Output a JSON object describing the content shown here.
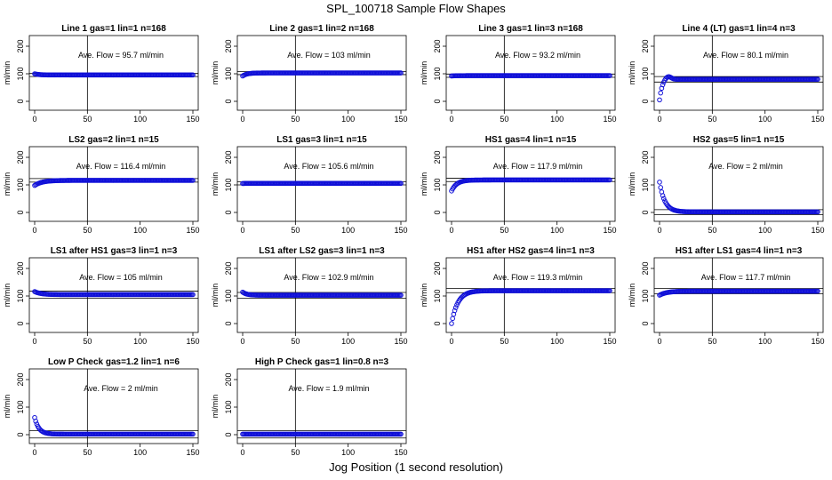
{
  "figure": {
    "title": "SPL_100718  Sample Flow Shapes",
    "xlabel": "Jog Position (1 second resolution)"
  },
  "chart_data": [
    {
      "type": "scatter",
      "title": "Line 1 gas=1 lin=1 n=168",
      "ylabel": "ml/min",
      "annotation": "Ave. Flow =  95.7  ml/min",
      "xlim": [
        0,
        150
      ],
      "ylim": [
        0,
        200
      ],
      "xticks": [
        0,
        50,
        100,
        150
      ],
      "yticks": [
        0,
        100,
        200
      ],
      "vline": 50,
      "hlines": [
        90,
        101
      ],
      "curve": {
        "start": 100,
        "end": 95.7,
        "tau": 4
      }
    },
    {
      "type": "scatter",
      "title": "Line 2 gas=1 lin=2 n=168",
      "ylabel": "ml/min",
      "annotation": "Ave. Flow =  103  ml/min",
      "xlim": [
        0,
        150
      ],
      "ylim": [
        0,
        200
      ],
      "xticks": [
        0,
        50,
        100,
        150
      ],
      "yticks": [
        0,
        100,
        200
      ],
      "vline": 50,
      "hlines": [
        97,
        108
      ],
      "curve": {
        "start": 92,
        "end": 103,
        "tau": 4
      }
    },
    {
      "type": "scatter",
      "title": "Line 3 gas=1 lin=3 n=168",
      "ylabel": "ml/min",
      "annotation": "Ave. Flow =  93.2  ml/min",
      "xlim": [
        0,
        150
      ],
      "ylim": [
        0,
        200
      ],
      "xticks": [
        0,
        50,
        100,
        150
      ],
      "yticks": [
        0,
        100,
        200
      ],
      "vline": 50,
      "hlines": [
        87,
        99
      ],
      "curve": {
        "start": 92,
        "end": 93.2,
        "tau": 3
      }
    },
    {
      "type": "scatter",
      "title": "Line 4 (LT) gas=1 lin=4 n=3",
      "ylabel": "ml/min",
      "annotation": "Ave. Flow =  80.1  ml/min",
      "xlim": [
        0,
        150
      ],
      "ylim": [
        0,
        200
      ],
      "xticks": [
        0,
        50,
        100,
        150
      ],
      "yticks": [
        0,
        100,
        200
      ],
      "vline": 50,
      "hlines": [
        70,
        90
      ],
      "curve": {
        "start": 5,
        "end": 80.1,
        "tau": 2.5,
        "overshoot": 12
      }
    },
    {
      "type": "scatter",
      "title": "LS2 gas=2 lin=1 n=15",
      "ylabel": "ml/min",
      "annotation": "Ave. Flow =  116.4  ml/min",
      "xlim": [
        0,
        150
      ],
      "ylim": [
        0,
        200
      ],
      "xticks": [
        0,
        50,
        100,
        150
      ],
      "yticks": [
        0,
        100,
        200
      ],
      "vline": 50,
      "hlines": [
        110,
        123
      ],
      "curve": {
        "start": 98,
        "end": 116.4,
        "tau": 7
      }
    },
    {
      "type": "scatter",
      "title": "LS1 gas=3 lin=1 n=15",
      "ylabel": "ml/min",
      "annotation": "Ave. Flow =  105.6  ml/min",
      "xlim": [
        0,
        150
      ],
      "ylim": [
        0,
        200
      ],
      "xticks": [
        0,
        50,
        100,
        150
      ],
      "yticks": [
        0,
        100,
        200
      ],
      "vline": 50,
      "hlines": [
        100,
        111
      ],
      "curve": {
        "start": 105,
        "end": 105.6,
        "tau": 3
      }
    },
    {
      "type": "scatter",
      "title": "HS1 gas=4 lin=1 n=15",
      "ylabel": "ml/min",
      "annotation": "Ave. Flow =  117.9  ml/min",
      "xlim": [
        0,
        150
      ],
      "ylim": [
        0,
        200
      ],
      "xticks": [
        0,
        50,
        100,
        150
      ],
      "yticks": [
        0,
        100,
        200
      ],
      "vline": 50,
      "hlines": [
        112,
        124
      ],
      "curve": {
        "start": 78,
        "end": 117.9,
        "tau": 5
      }
    },
    {
      "type": "scatter",
      "title": "HS2 gas=5 lin=1 n=15",
      "ylabel": "ml/min",
      "annotation": "Ave. Flow =  2  ml/min",
      "xlim": [
        0,
        150
      ],
      "ylim": [
        0,
        200
      ],
      "xticks": [
        0,
        50,
        100,
        150
      ],
      "yticks": [
        0,
        100,
        200
      ],
      "vline": 50,
      "hlines": [
        -8,
        10
      ],
      "curve": {
        "start": 110,
        "end": 2,
        "tau": 5
      }
    },
    {
      "type": "scatter",
      "title": "LS1 after HS1 gas=3 lin=1 n=3",
      "ylabel": "ml/min",
      "annotation": "Ave. Flow =  105  ml/min",
      "xlim": [
        0,
        150
      ],
      "ylim": [
        0,
        200
      ],
      "xticks": [
        0,
        50,
        100,
        150
      ],
      "yticks": [
        0,
        100,
        200
      ],
      "vline": 50,
      "hlines": [
        92,
        118
      ],
      "curve": {
        "start": 116,
        "end": 105,
        "tau": 6
      }
    },
    {
      "type": "scatter",
      "title": "LS1 after LS2 gas=3 lin=1 n=3",
      "ylabel": "ml/min",
      "annotation": "Ave. Flow =  102.9  ml/min",
      "xlim": [
        0,
        150
      ],
      "ylim": [
        0,
        200
      ],
      "xticks": [
        0,
        50,
        100,
        150
      ],
      "yticks": [
        0,
        100,
        200
      ],
      "vline": 50,
      "hlines": [
        92,
        113
      ],
      "curve": {
        "start": 114,
        "end": 102.9,
        "tau": 4
      }
    },
    {
      "type": "scatter",
      "title": "HS1 after HS2 gas=4 lin=1 n=3",
      "ylabel": "ml/min",
      "annotation": "Ave. Flow =  119.3  ml/min",
      "xlim": [
        0,
        150
      ],
      "ylim": [
        0,
        200
      ],
      "xticks": [
        0,
        50,
        100,
        150
      ],
      "yticks": [
        0,
        100,
        200
      ],
      "vline": 50,
      "hlines": [
        112,
        127
      ],
      "curve": {
        "start": 0,
        "end": 119.3,
        "tau": 6
      }
    },
    {
      "type": "scatter",
      "title": "HS1 after LS1 gas=4 lin=1 n=3",
      "ylabel": "ml/min",
      "annotation": "Ave. Flow =  117.7  ml/min",
      "xlim": [
        0,
        150
      ],
      "ylim": [
        0,
        200
      ],
      "xticks": [
        0,
        50,
        100,
        150
      ],
      "yticks": [
        0,
        100,
        200
      ],
      "vline": 50,
      "hlines": [
        108,
        127
      ],
      "curve": {
        "start": 103,
        "end": 117.7,
        "tau": 7
      }
    },
    {
      "type": "scatter",
      "title": "Low P Check gas=1.2 lin=1 n=6",
      "ylabel": "ml/min",
      "annotation": "Ave. Flow =  2  ml/min",
      "xlim": [
        0,
        150
      ],
      "ylim": [
        0,
        200
      ],
      "xticks": [
        0,
        50,
        100,
        150
      ],
      "yticks": [
        0,
        100,
        200
      ],
      "vline": 50,
      "hlines": [
        -12,
        14
      ],
      "curve": {
        "start": 62,
        "end": 2,
        "tau": 4
      }
    },
    {
      "type": "scatter",
      "title": "High P Check gas=1 lin=0.8 n=3",
      "ylabel": "ml/min",
      "annotation": "Ave. Flow =  1.9  ml/min",
      "xlim": [
        0,
        150
      ],
      "ylim": [
        0,
        200
      ],
      "xticks": [
        0,
        50,
        100,
        150
      ],
      "yticks": [
        0,
        100,
        200
      ],
      "vline": 50,
      "hlines": [
        -12,
        14
      ],
      "curve": {
        "start": 1.9,
        "end": 1.9,
        "tau": 3
      }
    }
  ],
  "colors": {
    "points": "#1010d8",
    "lines": "#000000"
  }
}
